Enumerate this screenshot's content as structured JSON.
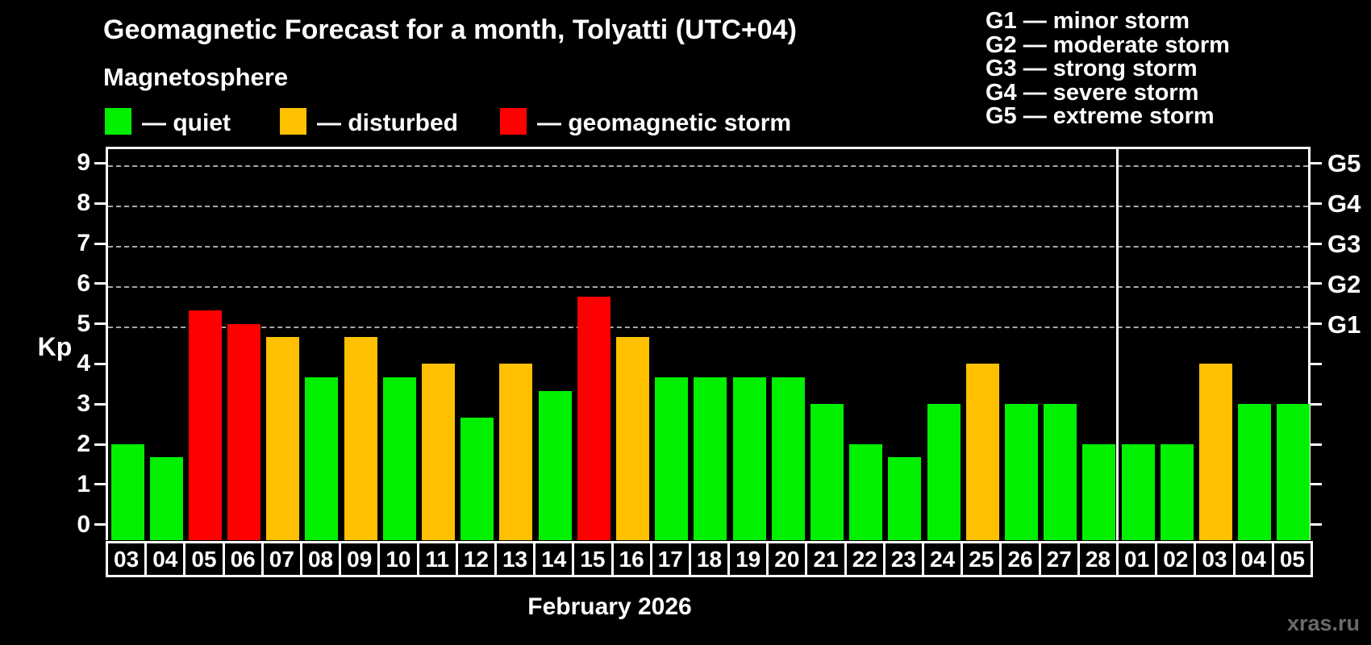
{
  "page": {
    "title": "Geomagnetic Forecast for a month, Tolyatti (UTC+04)",
    "subtitle": "Magnetosphere",
    "watermark": "xras.ru"
  },
  "legend": {
    "quiet_label": "— quiet",
    "disturbed_label": "— disturbed",
    "storm_label": "— geomagnetic storm"
  },
  "g_scale_legend": [
    "G1 — minor storm",
    "G2 — moderate storm",
    "G3 — strong storm",
    "G4 — severe storm",
    "G5 — extreme storm"
  ],
  "axis": {
    "y_title": "Kp",
    "x_title": "February 2026"
  },
  "colors": {
    "quiet": "#00f000",
    "disturbed": "#ffc000",
    "storm": "#ff0000",
    "grid": "#a8a8a8",
    "frame": "#ffffff",
    "watermark": "#6a6a6a"
  },
  "chart_data": {
    "type": "bar",
    "title": "Geomagnetic Forecast for a month, Tolyatti (UTC+04)",
    "xlabel": "February 2026",
    "ylabel": "Kp",
    "ylim": [
      0,
      9
    ],
    "grid": "dashed horizontal lines at Kp 5-9 only",
    "yticks": [
      0,
      1,
      2,
      3,
      4,
      5,
      6,
      7,
      8,
      9
    ],
    "right_axis_labels": [
      {
        "kp": 5,
        "label": "G1"
      },
      {
        "kp": 6,
        "label": "G2"
      },
      {
        "kp": 7,
        "label": "G3"
      },
      {
        "kp": 8,
        "label": "G4"
      },
      {
        "kp": 9,
        "label": "G5"
      }
    ],
    "gridlines_at": [
      5,
      6,
      7,
      8,
      9
    ],
    "categories": [
      "03",
      "04",
      "05",
      "06",
      "07",
      "08",
      "09",
      "10",
      "11",
      "12",
      "13",
      "14",
      "15",
      "16",
      "17",
      "18",
      "19",
      "20",
      "21",
      "22",
      "23",
      "24",
      "25",
      "26",
      "27",
      "28",
      "01",
      "02",
      "03",
      "04",
      "05"
    ],
    "values": [
      2,
      1.67,
      5.33,
      5,
      4.67,
      3.67,
      4.67,
      3.67,
      4,
      2.67,
      4,
      3.33,
      5.67,
      4.67,
      3.67,
      3.67,
      3.67,
      3.67,
      3,
      2,
      1.67,
      3,
      4,
      3,
      3,
      2,
      2,
      2,
      4,
      3,
      3
    ],
    "statuses": [
      "quiet",
      "quiet",
      "storm",
      "storm",
      "disturbed",
      "quiet",
      "disturbed",
      "quiet",
      "disturbed",
      "quiet",
      "disturbed",
      "quiet",
      "storm",
      "disturbed",
      "quiet",
      "quiet",
      "quiet",
      "quiet",
      "quiet",
      "quiet",
      "quiet",
      "quiet",
      "disturbed",
      "quiet",
      "quiet",
      "quiet",
      "quiet",
      "quiet",
      "disturbed",
      "quiet",
      "quiet"
    ],
    "month_separator_after_index": 25,
    "legend_position": "top-left",
    "series_legend": [
      {
        "status": "quiet",
        "label": "— quiet"
      },
      {
        "status": "disturbed",
        "label": "— disturbed"
      },
      {
        "status": "storm",
        "label": "— geomagnetic storm"
      }
    ]
  }
}
